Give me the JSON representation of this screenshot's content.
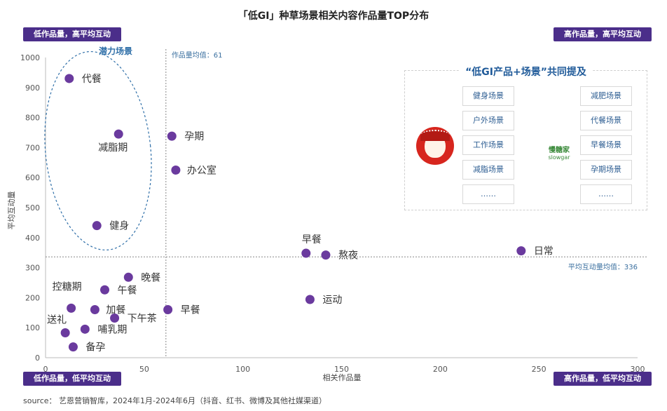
{
  "title": "「低GI」种草场景相关内容作品量TOP分布",
  "quadrants": {
    "top_left": "低作品量，高平均互动",
    "top_right": "高作品量，高平均互动",
    "bottom_left": "低作品量，低平均互动",
    "bottom_right": "高作品量，低平均互动"
  },
  "source": "source： 艺恩营销智库，2024年1月-2024年6月（抖音、红书、微博及其他社媒渠道）",
  "annotations": {
    "x_mean": "作品量均值：61",
    "y_mean": "平均互动量均值：336",
    "potential": "潜力场景"
  },
  "scene_box": {
    "title": "“低GI产品+场景”共同提及",
    "left_items": [
      "健身场景",
      "户外场景",
      "工作场景",
      "减脂场景",
      "……"
    ],
    "right_items": [
      "减肥场景",
      "代餐场景",
      "早餐场景",
      "孕期场景",
      "……"
    ],
    "brand_cn": "慢糖家",
    "brand_en": "slowgar"
  },
  "chart_data": {
    "type": "scatter",
    "title": "「低GI」种草场景相关内容作品量TOP分布",
    "xlabel": "相关作品量",
    "ylabel": "平均互动量",
    "xlim": [
      0,
      300
    ],
    "ylim": [
      0,
      1000
    ],
    "x_ticks": [
      0,
      50,
      100,
      150,
      200,
      250,
      300
    ],
    "y_ticks": [
      0,
      100,
      200,
      300,
      400,
      500,
      600,
      700,
      800,
      900,
      1000
    ],
    "grid": false,
    "color": "#6a3a9e",
    "x_mean": 61,
    "y_mean": 336,
    "points": [
      {
        "label": "代餐",
        "x": 12,
        "y": 930
      },
      {
        "label": "减脂期",
        "x": 37,
        "y": 745
      },
      {
        "label": "健身",
        "x": 26,
        "y": 440
      },
      {
        "label": "孕期",
        "x": 64,
        "y": 738
      },
      {
        "label": "办公室",
        "x": 66,
        "y": 625
      },
      {
        "label": "早餐",
        "x": 132,
        "y": 348
      },
      {
        "label": "熬夜",
        "x": 142,
        "y": 342
      },
      {
        "label": "日常",
        "x": 241,
        "y": 356
      },
      {
        "label": "晚餐",
        "x": 42,
        "y": 268
      },
      {
        "label": "控糖期",
        "x": 13,
        "y": 165
      },
      {
        "label": "午餐",
        "x": 30,
        "y": 226
      },
      {
        "label": "加餐",
        "x": 25,
        "y": 160
      },
      {
        "label": "早餐",
        "x": 62,
        "y": 160
      },
      {
        "label": "送礼",
        "x": 10,
        "y": 83
      },
      {
        "label": "哺乳期",
        "x": 20,
        "y": 95
      },
      {
        "label": "下午茶",
        "x": 35,
        "y": 132
      },
      {
        "label": "运动",
        "x": 134,
        "y": 194
      },
      {
        "label": "备孕",
        "x": 14,
        "y": 36
      }
    ]
  }
}
